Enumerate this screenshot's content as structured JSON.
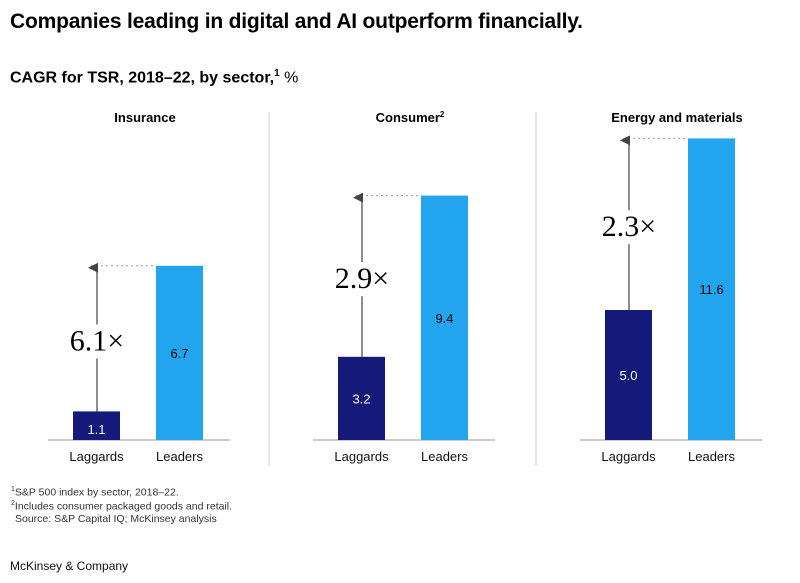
{
  "title": "Companies leading in digital and AI outperform financially.",
  "subtitle": {
    "text": "CAGR for TSR, 2018–22, by sector,",
    "footnote": "1",
    "unit": "%"
  },
  "colors": {
    "laggards": "#14197a",
    "leaders": "#23a4ee",
    "arrow": "#444444",
    "divider": "#d0d0d0"
  },
  "chart_data": [
    {
      "type": "bar",
      "title": "Insurance",
      "title_footnote": "",
      "categories": [
        "Laggards",
        "Leaders"
      ],
      "values": [
        1.1,
        6.7
      ],
      "value_labels": [
        "1.1",
        "6.7"
      ],
      "multiplier": "6.1×",
      "ylim": [
        0,
        12
      ]
    },
    {
      "type": "bar",
      "title": "Consumer",
      "title_footnote": "2",
      "categories": [
        "Laggards",
        "Leaders"
      ],
      "values": [
        3.2,
        9.4
      ],
      "value_labels": [
        "3.2",
        "9.4"
      ],
      "multiplier": "2.9×",
      "ylim": [
        0,
        12
      ]
    },
    {
      "type": "bar",
      "title": "Energy and materials",
      "title_footnote": "",
      "categories": [
        "Laggards",
        "Leaders"
      ],
      "values": [
        5.0,
        11.6
      ],
      "value_labels": [
        "5.0",
        "11.6"
      ],
      "multiplier": "2.3×",
      "ylim": [
        0,
        12
      ]
    }
  ],
  "footnotes": [
    {
      "mark": "1",
      "text": "S&P 500 index by sector, 2018–22."
    },
    {
      "mark": "2",
      "text": "Includes consumer packaged goods and retail."
    },
    {
      "mark": "",
      "text": "Source: S&P Capital IQ; McKinsey analysis"
    }
  ],
  "brand": "McKinsey & Company"
}
